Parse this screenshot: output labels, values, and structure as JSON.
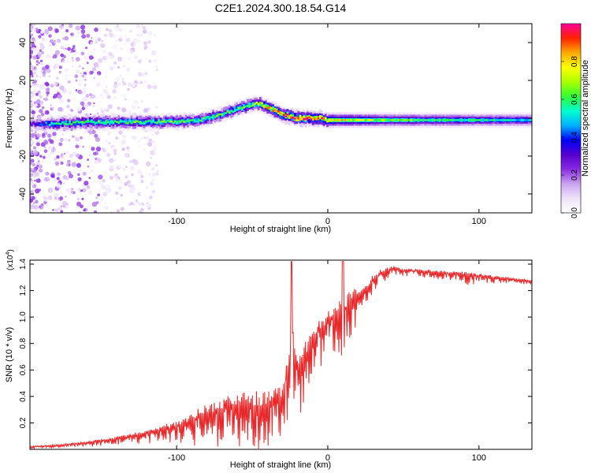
{
  "title": "C2E1.2024.300.18.54.G14",
  "colors": {
    "spectrum_background": "#ffffff",
    "snr_line": "#e8282a",
    "axis": "#000000",
    "colormap": [
      "#ffffff",
      "#efe3fb",
      "#c9a3ef",
      "#8a2be2",
      "#5500cc",
      "#0000ff",
      "#00b2ff",
      "#00ffd0",
      "#33ff33",
      "#aaff00",
      "#ffff00",
      "#ffaa00",
      "#ff2200",
      "#ff0099"
    ]
  },
  "chart_data": [
    {
      "type": "heatmap",
      "xlabel": "Height of straight line (km)",
      "ylabel": "Frequency (Hz)",
      "xlim": [
        -197,
        135
      ],
      "ylim": [
        -50,
        50
      ],
      "xticks": [
        -100,
        0,
        100
      ],
      "xtick_labels": [
        "-100",
        "0",
        "100"
      ],
      "yticks": [
        -40,
        -20,
        0,
        20,
        40
      ],
      "ytick_labels": [
        "-40",
        "-20",
        "0",
        "20",
        "40"
      ],
      "grid": false,
      "colorbar": {
        "label": "Normalized spectral amplitude",
        "range": [
          0,
          1
        ],
        "ticks": [
          0.0,
          0.2,
          0.4,
          0.6,
          0.8
        ],
        "tick_labels": [
          "0.0",
          "0.2",
          "0.4",
          "0.6",
          "0.8"
        ]
      },
      "ridge": {
        "description_free": true,
        "x": [
          -195,
          -180,
          -160,
          -140,
          -120,
          -100,
          -85,
          -70,
          -60,
          -50,
          -45,
          -40,
          -35,
          -30,
          -25,
          -20,
          -15,
          -10,
          -5,
          0,
          20,
          60,
          100,
          135
        ],
        "frequency": [
          -3,
          -3,
          -2,
          -2,
          -2,
          -2,
          -1,
          2,
          5,
          7,
          8,
          6,
          4,
          2,
          1,
          0,
          0,
          0,
          0,
          -1,
          -1,
          -1,
          -1,
          -1
        ],
        "peak_amplitude": [
          0.3,
          0.55,
          0.6,
          0.6,
          0.6,
          0.65,
          0.6,
          0.6,
          0.6,
          0.65,
          0.7,
          0.8,
          0.85,
          0.9,
          0.95,
          0.95,
          0.95,
          0.95,
          0.9,
          0.8,
          0.7,
          0.6,
          0.55,
          0.5
        ]
      }
    },
    {
      "type": "line",
      "xlabel": "Height of straight line (km)",
      "ylabel": "SNR (10 * v/v)",
      "y_multiplier": "(x10",
      "y_multiplier_exponent": "4",
      "y_multiplier_close": ")",
      "xlim": [
        -197,
        135
      ],
      "ylim": [
        0,
        1.43
      ],
      "xticks": [
        -100,
        0,
        100
      ],
      "xtick_labels": [
        "-100",
        "0",
        "100"
      ],
      "yticks": [
        0.2,
        0.4,
        0.6,
        0.8,
        1.0,
        1.2,
        1.4
      ],
      "ytick_labels": [
        "0.2",
        "0.4",
        "0.6",
        "0.8",
        "1.0",
        "1.2",
        "1.4"
      ],
      "grid": false,
      "series": [
        {
          "x": [
            -197,
            -180,
            -160,
            -140,
            -120,
            -110,
            -100,
            -90,
            -80,
            -70,
            -60,
            -50,
            -40,
            -35,
            -30,
            -25,
            -24,
            -22,
            -20,
            -18,
            -15,
            -10,
            -5,
            0,
            5,
            10,
            15,
            20,
            25,
            30,
            35,
            40,
            45,
            50,
            60,
            70,
            80,
            90,
            100,
            110,
            120,
            135
          ],
          "y": [
            0.02,
            0.03,
            0.05,
            0.08,
            0.12,
            0.15,
            0.18,
            0.22,
            0.27,
            0.3,
            0.33,
            0.33,
            0.33,
            0.35,
            0.4,
            0.7,
            1.0,
            0.7,
            0.65,
            0.6,
            0.7,
            0.85,
            0.9,
            0.95,
            1.0,
            1.05,
            1.1,
            1.15,
            1.2,
            1.28,
            1.33,
            1.36,
            1.37,
            1.35,
            1.35,
            1.34,
            1.33,
            1.32,
            1.31,
            1.3,
            1.29,
            1.27
          ],
          "spread": [
            0.01,
            0.01,
            0.02,
            0.03,
            0.05,
            0.06,
            0.08,
            0.12,
            0.15,
            0.18,
            0.2,
            0.22,
            0.22,
            0.22,
            0.2,
            0.25,
            0.25,
            0.25,
            0.25,
            0.25,
            0.22,
            0.2,
            0.18,
            0.18,
            0.2,
            0.22,
            0.2,
            0.15,
            0.1,
            0.08,
            0.06,
            0.05,
            0.04,
            0.03,
            0.03,
            0.03,
            0.04,
            0.05,
            0.04,
            0.03,
            0.02,
            0.02
          ]
        }
      ]
    }
  ]
}
